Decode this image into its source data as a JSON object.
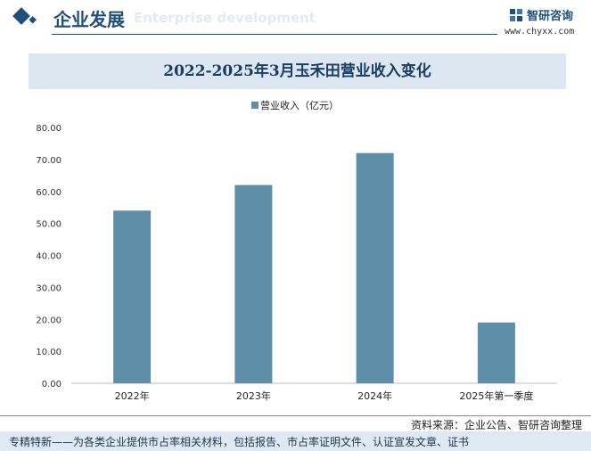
{
  "header": {
    "title": "企业发展",
    "subtitle": "Enterprise development",
    "brand_name": "智研咨询",
    "brand_url": "www.chyxx.com"
  },
  "colors": {
    "bar": "#5f8fa8",
    "brand": "#1f4f7a",
    "title_band": "#dce7f2"
  },
  "chart_data": {
    "type": "bar",
    "title": "2022-2025年3月玉禾田营业收入变化",
    "categories": [
      "2022年",
      "2023年",
      "2024年",
      "2025年第一季度"
    ],
    "series": [
      {
        "name": "营业收入（亿元）",
        "values": [
          54.0,
          62.0,
          72.0,
          19.0
        ]
      }
    ],
    "ylim": [
      0,
      80
    ],
    "yticks": [
      "0.00",
      "10.00",
      "20.00",
      "30.00",
      "40.00",
      "50.00",
      "60.00",
      "70.00",
      "80.00"
    ],
    "legend_position": "top-center",
    "grid": false
  },
  "source": "资料来源：企业公告、智研咨询整理",
  "footer": "专精特新——为各类企业提供市占率相关材料，包括报告、市占率证明文件、认证宣发文章、证书"
}
